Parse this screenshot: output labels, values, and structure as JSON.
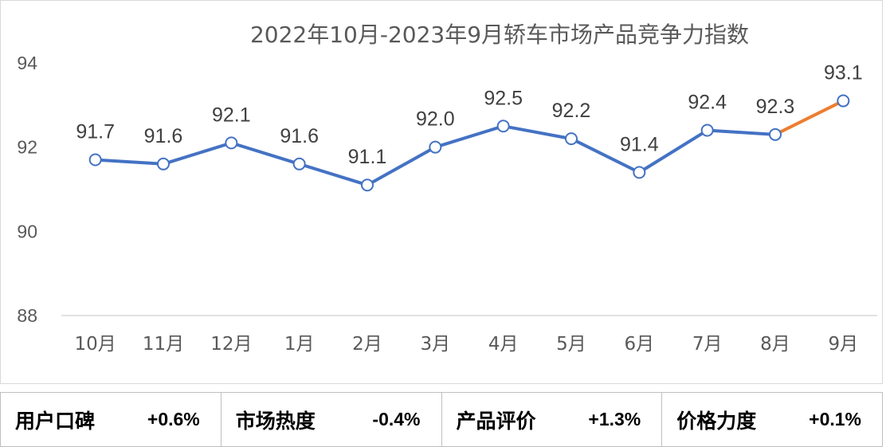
{
  "chart_data": {
    "type": "line",
    "title": "2022年10月-2023年9月轿车市场产品竞争力指数",
    "categories": [
      "10月",
      "11月",
      "12月",
      "1月",
      "2月",
      "3月",
      "4月",
      "5月",
      "6月",
      "7月",
      "8月",
      "9月"
    ],
    "values": [
      91.7,
      91.6,
      92.1,
      91.6,
      91.1,
      92.0,
      92.5,
      92.2,
      91.4,
      92.4,
      92.3,
      93.1
    ],
    "labels": [
      "91.7",
      "91.6",
      "92.1",
      "91.6",
      "91.1",
      "92.0",
      "92.5",
      "92.2",
      "91.4",
      "92.4",
      "92.3",
      "93.1"
    ],
    "ylim": [
      88,
      94
    ],
    "yticks": [
      88,
      90,
      92,
      94
    ],
    "xlabel": "",
    "ylabel": "",
    "series_color": "#4472C4",
    "highlight_color": "#ED7D31",
    "highlight_last_segment": true,
    "dropline_color": "#D6E0EE"
  },
  "metrics": [
    {
      "name": "用户口碑",
      "value": "+0.6%"
    },
    {
      "name": "市场热度",
      "value": "-0.4%"
    },
    {
      "name": "产品评价",
      "value": "+1.3%"
    },
    {
      "name": "价格力度",
      "value": "+0.1%"
    }
  ]
}
